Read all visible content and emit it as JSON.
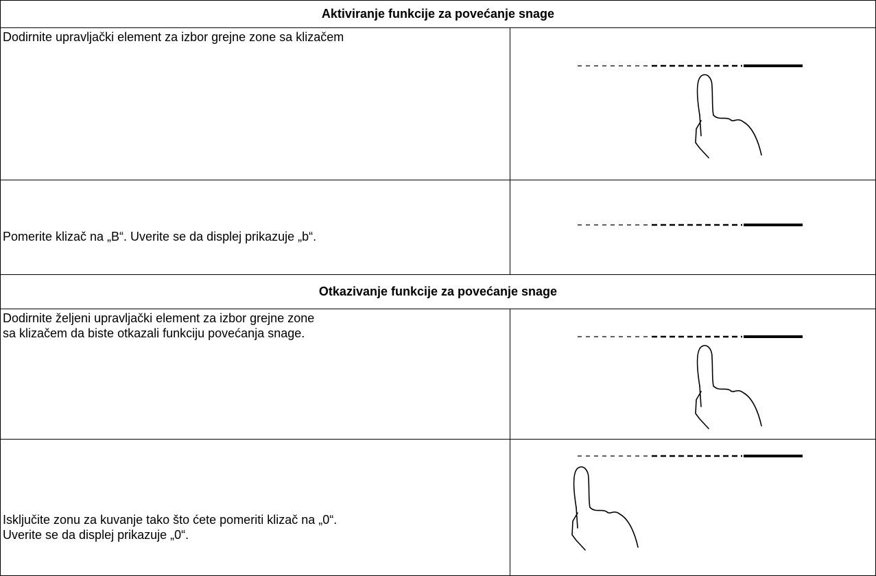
{
  "table": {
    "rows": [
      {
        "header": "Aktiviranje funkcije za povećanje snage"
      },
      {
        "lines": [
          "Dodirnite upravljački element za izbor grejne zone sa klizačem"
        ]
      },
      {
        "lines": [
          "Pomerite klizač na „B“. Uverite se da displej prikazuje „b“."
        ]
      },
      {
        "header": "Otkazivanje funkcije za povećanje snage"
      },
      {
        "lines": [
          "Dodirnite željeni upravljački element za izbor grejne zone",
          "sa klizačem da biste otkazali funkciju povećanja snage."
        ]
      },
      {
        "lines": [
          "Isključite zonu za kuvanje tako što ćete pomeriti klizač na „0“.",
          "Uverite se da displej prikazuje „0“."
        ]
      }
    ]
  }
}
